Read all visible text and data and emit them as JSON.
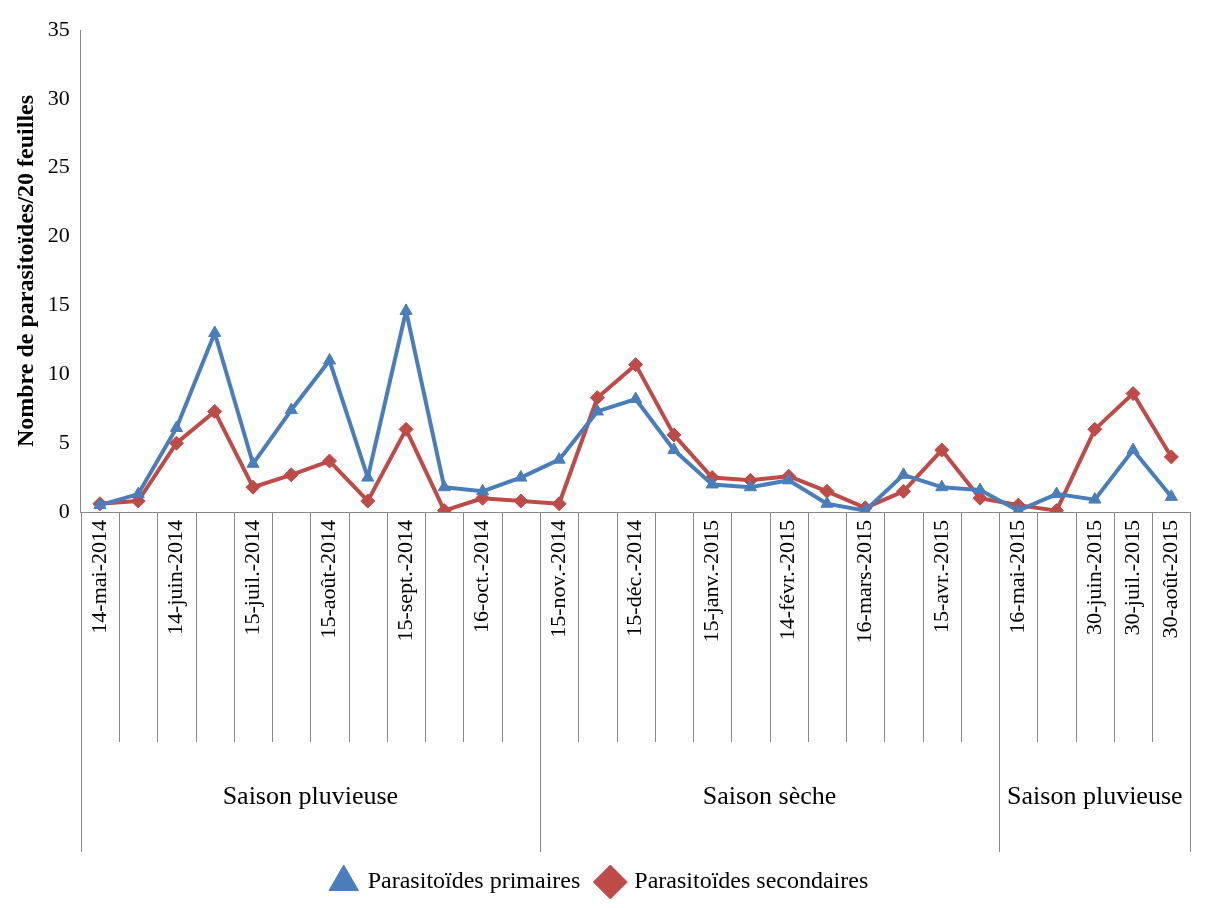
{
  "chart_data": {
    "type": "line",
    "ylabel": "Nombre de parasitoïdes/20 feuilles",
    "categories": [
      "14-mai-2014",
      null,
      "14-juin-2014",
      null,
      "15-juil.-2014",
      null,
      "15-août-2014",
      null,
      "15-sept.-2014",
      null,
      "16-oct.-2014",
      null,
      "15-nov.-2014",
      null,
      "15-déc.-2014",
      null,
      "15-janv.-2015",
      null,
      "14-févr.-2015",
      null,
      "16-mars-2015",
      null,
      "15-avr.-2015",
      null,
      "16-mai-2015",
      null,
      "30-juin-2015",
      "30-juil.-2015",
      "30-août-2015"
    ],
    "series": [
      {
        "name": "Parasitoïdes primaires",
        "color": "#4a7ebb",
        "marker": "triangle",
        "values": [
          0.5,
          1.3,
          6.1,
          13.0,
          3.5,
          7.4,
          11.0,
          2.5,
          14.6,
          1.8,
          1.5,
          2.5,
          3.8,
          7.3,
          8.2,
          4.5,
          2.0,
          1.8,
          2.3,
          0.6,
          0.1,
          2.7,
          1.8,
          1.6,
          0.1,
          1.3,
          0.9,
          4.5,
          1.1
        ]
      },
      {
        "name": "Parasitoïdes secondaires",
        "color": "#be4b48",
        "marker": "diamond",
        "values": [
          0.6,
          0.8,
          5.0,
          7.3,
          1.8,
          2.7,
          3.7,
          0.8,
          6.0,
          0.1,
          1.0,
          0.8,
          0.6,
          8.3,
          10.7,
          5.6,
          2.5,
          2.3,
          2.6,
          1.5,
          0.3,
          1.5,
          4.5,
          1.0,
          0.5,
          0.1,
          6.0,
          8.6,
          4.0
        ]
      }
    ],
    "annotations": [
      "Saison pluvieuse",
      "Saison sèche",
      "Saison pluvieuse"
    ],
    "ylim": [
      0,
      35
    ],
    "yticks": [
      0,
      5,
      10,
      15,
      20,
      25,
      30,
      35
    ],
    "grid": false,
    "legend": "bottom",
    "line_style": "solid"
  }
}
